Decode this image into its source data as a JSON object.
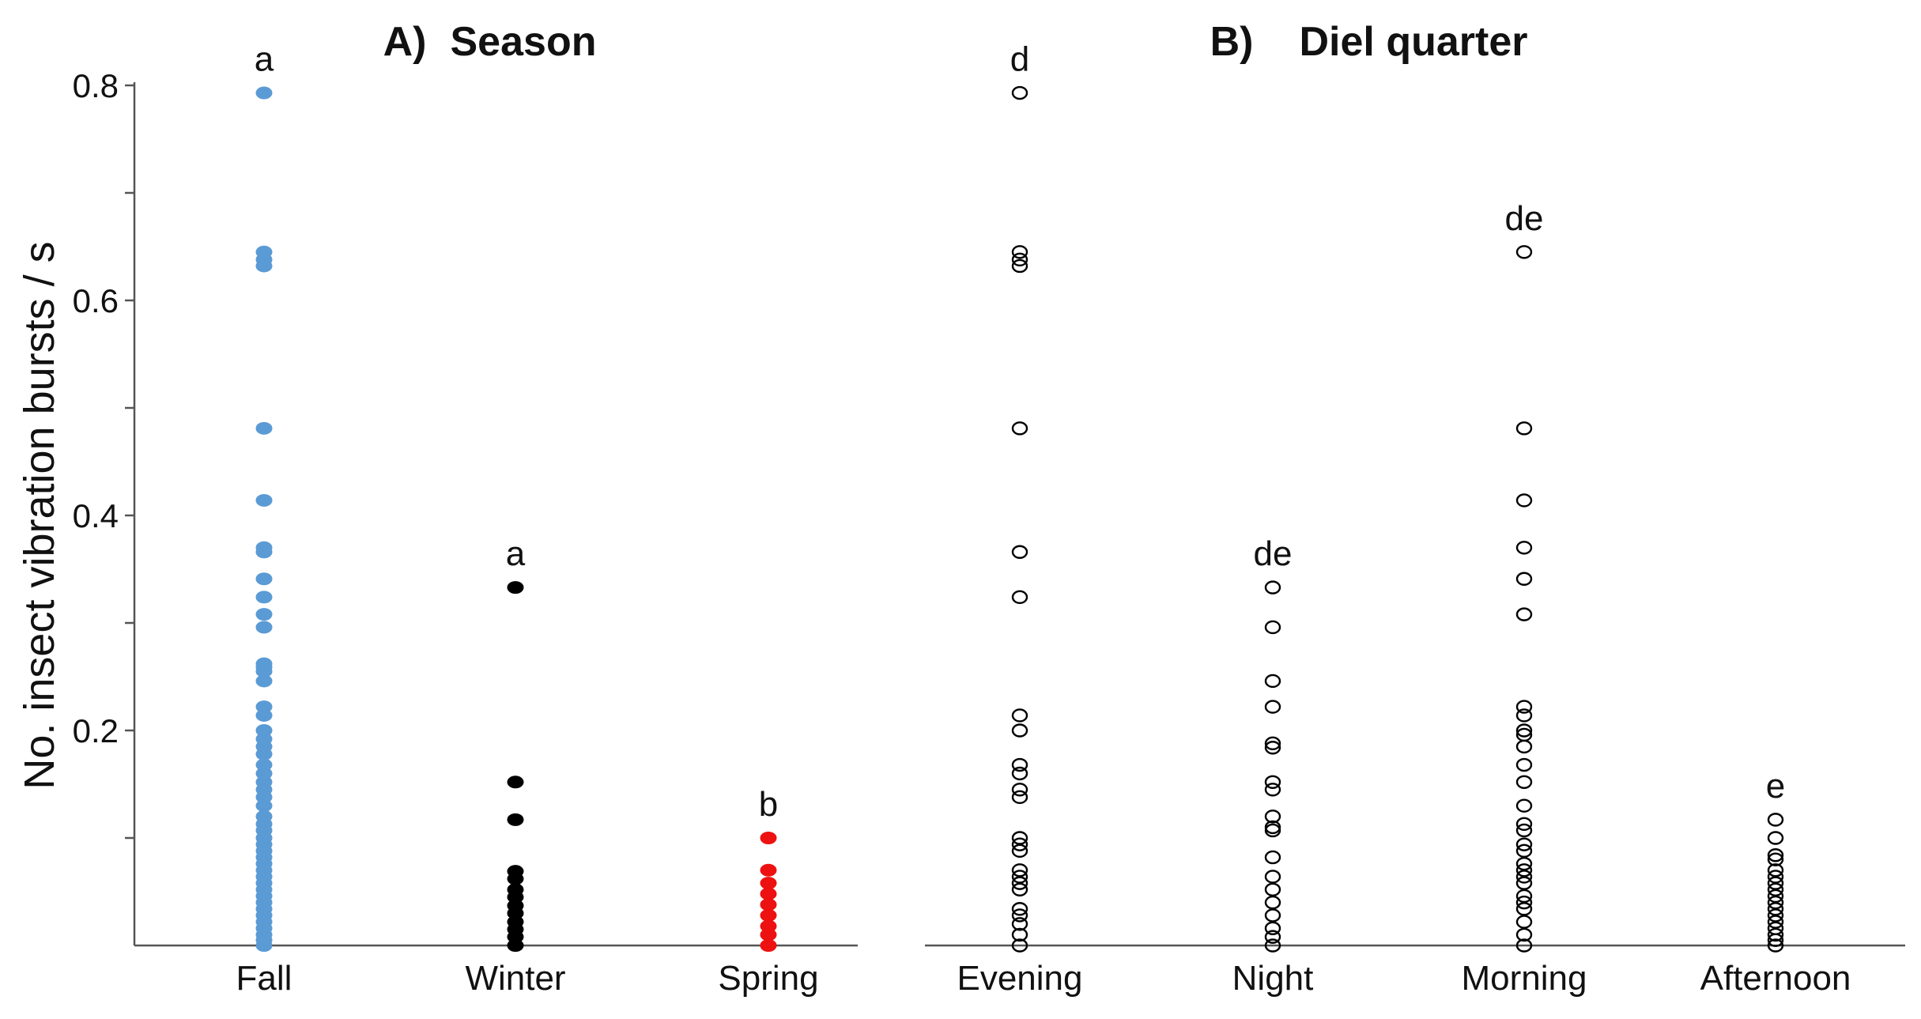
{
  "chart_data": {
    "ylabel": "No.  insect vibration bursts / s",
    "ylim": [
      0,
      0.8
    ],
    "yticks": [
      "0.2",
      "0.4",
      "0.6",
      "0.8"
    ],
    "panels": [
      {
        "type": "scatter",
        "title_prefix": "A)",
        "title": "Season",
        "categories": [
          {
            "name": "Fall",
            "color": "#5b9bd5",
            "filled": true,
            "letter": "a",
            "values": [
              0.793,
              0.645,
              0.638,
              0.632,
              0.481,
              0.414,
              0.37,
              0.366,
              0.341,
              0.324,
              0.308,
              0.296,
              0.262,
              0.259,
              0.255,
              0.246,
              0.222,
              0.214,
              0.2,
              0.192,
              0.185,
              0.178,
              0.168,
              0.16,
              0.152,
              0.145,
              0.138,
              0.13,
              0.12,
              0.113,
              0.107,
              0.1,
              0.094,
              0.088,
              0.082,
              0.076,
              0.07,
              0.064,
              0.058,
              0.052,
              0.046,
              0.04,
              0.034,
              0.028,
              0.022,
              0.016,
              0.01,
              0.005,
              0.0
            ]
          },
          {
            "name": "Winter",
            "color": "#000000",
            "filled": true,
            "letter": "a",
            "values": [
              0.333,
              0.152,
              0.117,
              0.069,
              0.062,
              0.052,
              0.045,
              0.037,
              0.03,
              0.022,
              0.015,
              0.008,
              0.0
            ]
          },
          {
            "name": "Spring",
            "color": "#ee1111",
            "filled": true,
            "letter": "b",
            "values": [
              0.1,
              0.07,
              0.058,
              0.048,
              0.038,
              0.028,
              0.018,
              0.01,
              0.0
            ]
          }
        ]
      },
      {
        "type": "scatter",
        "title_prefix": "B)",
        "title": "Diel quarter",
        "categories": [
          {
            "name": "Evening",
            "color": "#000000",
            "filled": false,
            "letter": "d",
            "values": [
              0.793,
              0.645,
              0.638,
              0.632,
              0.481,
              0.366,
              0.324,
              0.214,
              0.2,
              0.168,
              0.16,
              0.145,
              0.138,
              0.1,
              0.094,
              0.088,
              0.07,
              0.064,
              0.058,
              0.052,
              0.034,
              0.028,
              0.02,
              0.01,
              0.0
            ]
          },
          {
            "name": "Night",
            "color": "#000000",
            "filled": false,
            "letter": "de",
            "values": [
              0.333,
              0.296,
              0.246,
              0.222,
              0.188,
              0.184,
              0.152,
              0.145,
              0.12,
              0.11,
              0.107,
              0.082,
              0.064,
              0.052,
              0.04,
              0.028,
              0.016,
              0.008,
              0.0
            ]
          },
          {
            "name": "Morning",
            "color": "#000000",
            "filled": false,
            "letter": "de",
            "values": [
              0.645,
              0.481,
              0.414,
              0.37,
              0.341,
              0.308,
              0.222,
              0.214,
              0.2,
              0.196,
              0.185,
              0.168,
              0.152,
              0.13,
              0.113,
              0.107,
              0.094,
              0.088,
              0.076,
              0.07,
              0.064,
              0.058,
              0.046,
              0.04,
              0.034,
              0.022,
              0.01,
              0.0
            ]
          },
          {
            "name": "Afternoon",
            "color": "#000000",
            "filled": false,
            "letter": "e",
            "values": [
              0.117,
              0.1,
              0.084,
              0.08,
              0.07,
              0.064,
              0.058,
              0.052,
              0.046,
              0.04,
              0.034,
              0.028,
              0.022,
              0.016,
              0.01,
              0.005,
              0.0
            ]
          }
        ]
      }
    ]
  }
}
